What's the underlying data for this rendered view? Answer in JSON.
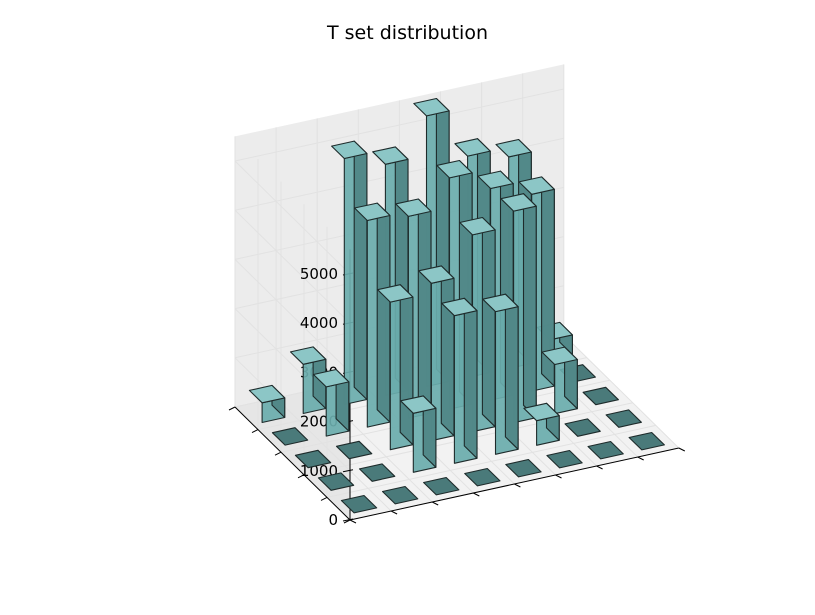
{
  "chart_data": {
    "type": "bar3d",
    "title": "T set distribution",
    "xlabel": "",
    "ylabel": "",
    "zlabel": "",
    "z_ticks": [
      "0",
      "1000",
      "2000",
      "3000",
      "4000",
      "5000"
    ],
    "zlim": [
      0,
      5000
    ],
    "grid": true,
    "bar_color": "#6aacac",
    "edge_color": "#1e2b2b",
    "pane_color": "#f2f2f2",
    "grid_color": "#e2e2e2",
    "series": [
      {
        "i": 0,
        "j": 0,
        "value": 400
      },
      {
        "i": 0,
        "j": 1,
        "value": 0
      },
      {
        "i": 0,
        "j": 2,
        "value": 0
      },
      {
        "i": 0,
        "j": 3,
        "value": 0
      },
      {
        "i": 0,
        "j": 4,
        "value": 0
      },
      {
        "i": 1,
        "j": 0,
        "value": 1000
      },
      {
        "i": 1,
        "j": 1,
        "value": 1000
      },
      {
        "i": 1,
        "j": 2,
        "value": 0
      },
      {
        "i": 1,
        "j": 3,
        "value": 0
      },
      {
        "i": 1,
        "j": 4,
        "value": 0
      },
      {
        "i": 2,
        "j": 0,
        "value": 5000
      },
      {
        "i": 2,
        "j": 1,
        "value": 4200
      },
      {
        "i": 2,
        "j": 2,
        "value": 3000
      },
      {
        "i": 2,
        "j": 3,
        "value": 1200
      },
      {
        "i": 2,
        "j": 4,
        "value": 0
      },
      {
        "i": 3,
        "j": 0,
        "value": 4700
      },
      {
        "i": 3,
        "j": 1,
        "value": 4100
      },
      {
        "i": 3,
        "j": 2,
        "value": 3200
      },
      {
        "i": 3,
        "j": 3,
        "value": 3000
      },
      {
        "i": 3,
        "j": 4,
        "value": 0
      },
      {
        "i": 4,
        "j": 0,
        "value": 5500
      },
      {
        "i": 4,
        "j": 1,
        "value": 4700
      },
      {
        "i": 4,
        "j": 2,
        "value": 4000
      },
      {
        "i": 4,
        "j": 3,
        "value": 2900
      },
      {
        "i": 4,
        "j": 4,
        "value": 0
      },
      {
        "i": 5,
        "j": 0,
        "value": 4500
      },
      {
        "i": 5,
        "j": 1,
        "value": 4300
      },
      {
        "i": 5,
        "j": 2,
        "value": 4300
      },
      {
        "i": 5,
        "j": 3,
        "value": 500
      },
      {
        "i": 5,
        "j": 4,
        "value": 0
      },
      {
        "i": 6,
        "j": 0,
        "value": 4300
      },
      {
        "i": 6,
        "j": 1,
        "value": 4000
      },
      {
        "i": 6,
        "j": 2,
        "value": 1000
      },
      {
        "i": 6,
        "j": 3,
        "value": 0
      },
      {
        "i": 6,
        "j": 4,
        "value": 0
      },
      {
        "i": 7,
        "j": 0,
        "value": 400
      },
      {
        "i": 7,
        "j": 1,
        "value": 0
      },
      {
        "i": 7,
        "j": 2,
        "value": 0
      },
      {
        "i": 7,
        "j": 3,
        "value": 0
      },
      {
        "i": 7,
        "j": 4,
        "value": 0
      }
    ]
  }
}
